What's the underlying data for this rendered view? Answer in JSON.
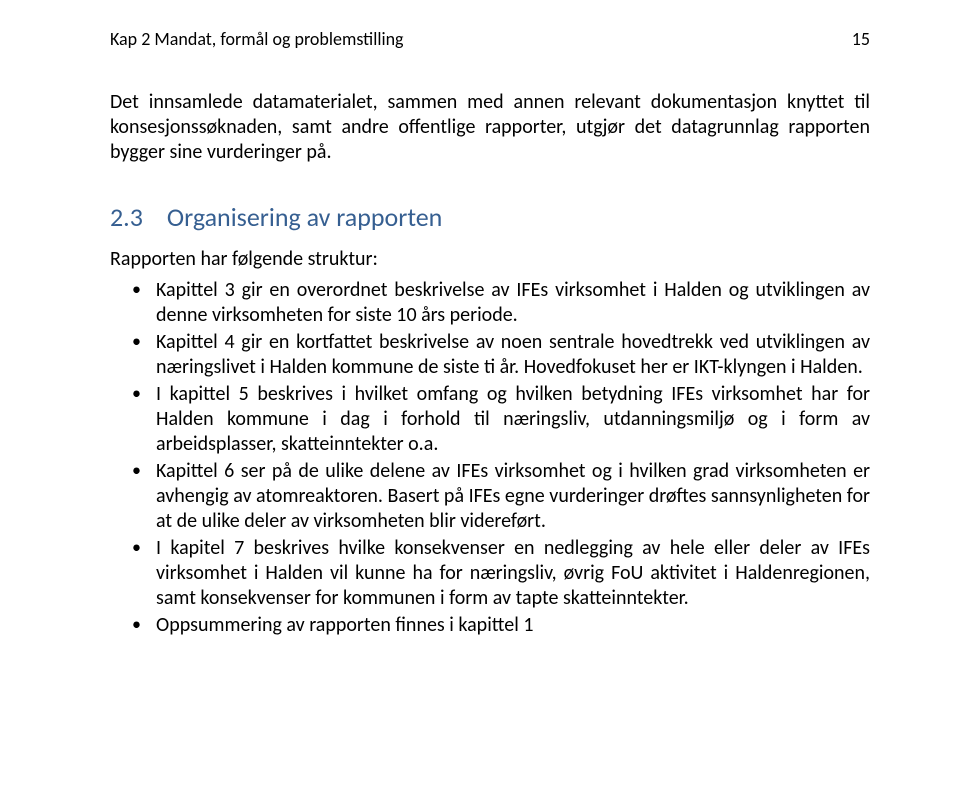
{
  "header": {
    "chapter_label": "Kap 2 Mandat, formål og problemstilling",
    "page_number": "15"
  },
  "intro_paragraph": "Det innsamlede datamaterialet, sammen med annen relevant dokumentasjon knyttet til konsesjonssøknaden, samt andre offentlige rapporter, utgjør det datagrunnlag rapporten bygger sine vurderinger på.",
  "section": {
    "number": "2.3",
    "title": "Organisering av rapporten"
  },
  "list_intro": "Rapporten har følgende struktur:",
  "bullets": [
    "Kapittel 3 gir en overordnet beskrivelse av IFEs virksomhet i Halden og utviklingen av denne virksomheten for siste 10 års periode.",
    "Kapittel 4 gir en kortfattet beskrivelse av noen sentrale hovedtrekk ved utviklingen av næringslivet i Halden kommune de siste ti år. Hovedfokuset her er IKT-klyngen i Halden.",
    "I kapittel 5 beskrives i hvilket omfang og hvilken betydning IFEs virksomhet har for Halden kommune i dag i forhold til næringsliv, utdanningsmiljø og i form av arbeidsplasser, skatteinntekter o.a.",
    "Kapittel 6 ser på de ulike delene av IFEs virksomhet og i hvilken grad virksomheten er avhengig av atomreaktoren. Basert på IFEs egne vurderinger drøftes sannsynligheten for at de ulike deler av virksomheten blir videreført.",
    "I kapitel 7 beskrives hvilke konsekvenser en nedlegging av hele eller deler av IFEs virksomhet i Halden vil kunne ha for næringsliv, øvrig FoU aktivitet i Haldenregionen, samt konsekvenser for kommunen i form av tapte skatteinntekter.",
    "Oppsummering av rapporten finnes i kapittel 1"
  ],
  "colors": {
    "heading": "#365f91",
    "text": "#000000",
    "background": "#ffffff"
  }
}
